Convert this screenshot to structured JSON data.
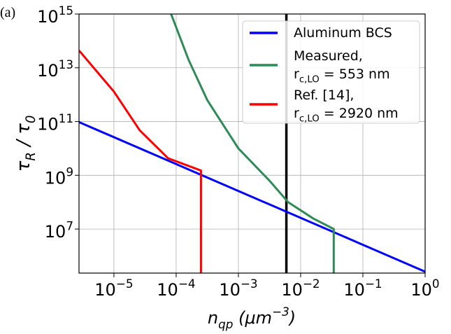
{
  "chart_data": {
    "type": "line",
    "panel_label": "(a)",
    "xlabel": "n_{qp} (μm^{−3})",
    "ylabel": "τ_{R} / τ_{0}",
    "log_x": true,
    "log_y": true,
    "grid": true,
    "legend": "upper right",
    "xlim": [
      2.75e-06,
      1
    ],
    "ylim": [
      230000.0,
      1000000000000000.0
    ],
    "xticks": [
      {
        "value": 1e-05,
        "label": "10^{−5}"
      },
      {
        "value": 0.0001,
        "label": "10^{−4}"
      },
      {
        "value": 0.001,
        "label": "10^{−3}"
      },
      {
        "value": 0.01,
        "label": "10^{−2}"
      },
      {
        "value": 0.1,
        "label": "10^{−1}"
      },
      {
        "value": 1,
        "label": "10^{0}"
      }
    ],
    "yticks": [
      {
        "value": 10000000.0,
        "label": "10^{7}"
      },
      {
        "value": 1000000000.0,
        "label": "10^{9}"
      },
      {
        "value": 100000000000.0,
        "label": "10^{11}"
      },
      {
        "value": 10000000000000.0,
        "label": "10^{13}"
      },
      {
        "value": 1000000000000000.0,
        "label": "10^{15}"
      }
    ],
    "vline": {
      "x": 0.0059,
      "color": "#000000"
    },
    "series": [
      {
        "name": "Aluminum BCS",
        "color": "#0000ff",
        "x": [
          2.75e-06,
          1
        ],
        "values": [
          95000000000.0,
          260000.0
        ]
      },
      {
        "name": "Measured,\nr_{c,LO} =  553 nm",
        "color": "#2e8b57",
        "x": [
          8.3e-05,
          0.000158,
          0.000316,
          0.001,
          0.00316,
          0.0063,
          0.0158,
          0.034,
          0.034
        ],
        "values": [
          1000000000000000.0,
          20000000000000.0,
          630000000000.0,
          10000000000.0,
          630000000.0,
          100000000.0,
          25000000.0,
          10000000.0,
          230000.0
        ]
      },
      {
        "name": "Ref. [14],\nr_{c,LO} =  2920 nm",
        "color": "#ff0000",
        "x": [
          2.75e-06,
          1e-05,
          2.6e-05,
          7.4e-05,
          0.00025,
          0.00025
        ],
        "values": [
          44000000000000.0,
          1300000000000.0,
          47000000000.0,
          4300000000.0,
          1500000000.0,
          230000.0
        ]
      }
    ]
  }
}
